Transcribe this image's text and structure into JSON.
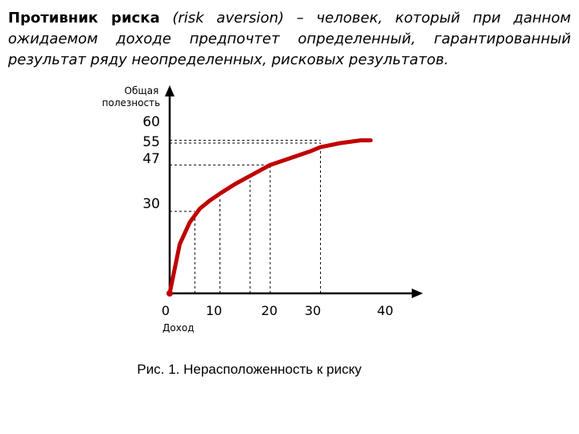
{
  "intro": {
    "term": "Противник риска",
    "body": " (risk aversion) – человек, который при данном ожидаемом доходе предпочтет определенный, гарантированный результат ряду неопределенных, рисковых результатов."
  },
  "caption": "Рис. 1. Нерасположенность к риску",
  "chart_data": {
    "type": "line",
    "title": "",
    "ylabel_lines": [
      "Общая",
      "полезность"
    ],
    "xlabel": "Доход",
    "x_ticks": [
      "0",
      "10",
      "20",
      "30",
      "40"
    ],
    "y_ticks": [
      "60",
      "55",
      "47",
      "30"
    ],
    "series": [
      {
        "x": [
          0,
          2,
          4,
          6,
          8,
          10,
          13,
          16,
          20,
          24,
          28,
          30,
          34,
          38,
          40
        ],
        "y": [
          0,
          18,
          26,
          31,
          34,
          36.5,
          40,
          43,
          47,
          49.5,
          52,
          53.5,
          55,
          56,
          56
        ]
      }
    ],
    "guides": [
      {
        "x": 5,
        "y": 30
      },
      {
        "x": 10,
        "y": 35
      },
      {
        "x": 16,
        "y": 42
      },
      {
        "x": 20,
        "y": 47
      },
      {
        "x": 30,
        "y": 55
      }
    ],
    "y_guide_levels": [
      60,
      55,
      47,
      30
    ],
    "colors": {
      "curve": "#c00000",
      "axis": "#000000",
      "guide": "#000000"
    }
  }
}
